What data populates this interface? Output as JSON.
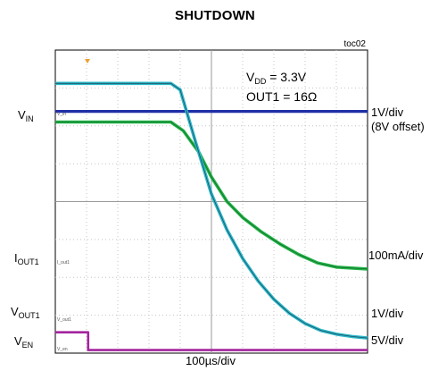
{
  "chart_data": {
    "type": "line",
    "title": "SHUTDOWN",
    "figure_id": "toc02",
    "xlabel": "100µs/div",
    "conditions": [
      "V",
      "DD",
      " = 3.3V",
      "OUT1 = 16Ω"
    ],
    "grid": true,
    "x_divisions": 10,
    "y_divisions": 8,
    "xlim": [
      0,
      10
    ],
    "ylim": [
      0,
      8
    ],
    "series": [
      {
        "label_main": "V",
        "label_sub": "IN",
        "scale": [
          "1V/div",
          "(8V offset)"
        ],
        "trace_tag": "V_in",
        "color": "#1f2fa8",
        "x": [
          0,
          10
        ],
        "y": [
          6.38,
          6.38
        ]
      },
      {
        "label_main": "I",
        "label_sub": "OUT1",
        "scale": [
          "100mA/div"
        ],
        "trace_tag": "I_out1",
        "color": "#22b548",
        "x": [
          0,
          3.7,
          4.1,
          4.6,
          5.0,
          5.5,
          6.0,
          6.6,
          7.2,
          7.8,
          8.4,
          9.0,
          10
        ],
        "y": [
          6.1,
          6.1,
          5.87,
          5.3,
          4.65,
          4.0,
          3.58,
          3.2,
          2.88,
          2.6,
          2.38,
          2.27,
          2.22
        ]
      },
      {
        "label_main": "V",
        "label_sub": "OUT1",
        "scale": [
          "1V/div"
        ],
        "trace_tag": "V_out1",
        "color": "#2ab7c7",
        "x": [
          0,
          3.7,
          4.0,
          4.5,
          5.0,
          5.5,
          6.0,
          6.5,
          7.0,
          7.5,
          8.0,
          8.5,
          9.0,
          9.5,
          10
        ],
        "y": [
          7.12,
          7.12,
          6.95,
          5.55,
          4.2,
          3.25,
          2.5,
          1.9,
          1.42,
          1.05,
          0.78,
          0.6,
          0.5,
          0.44,
          0.4
        ]
      },
      {
        "label_main": "V",
        "label_sub": "EN",
        "scale": [
          "5V/div"
        ],
        "trace_tag": "V_en",
        "color": "#a3249e",
        "x": [
          0,
          1.05,
          1.05,
          10
        ],
        "y": [
          0.55,
          0.55,
          0.08,
          0.08
        ]
      }
    ]
  }
}
